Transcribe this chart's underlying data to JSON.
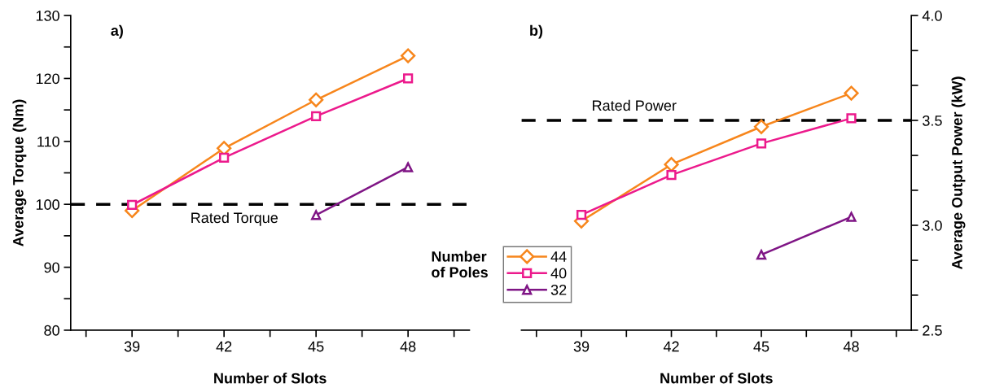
{
  "chart_data": [
    {
      "type": "line",
      "title": "a)",
      "xlabel": "Number of Slots",
      "ylabel": "Average Torque (Nm)",
      "x": [
        39,
        42,
        45,
        48
      ],
      "xlim": [
        37,
        50
      ],
      "xticks": [
        {
          "value": 37.5,
          "label": null
        },
        39,
        {
          "value": 40.5,
          "label": null
        },
        42,
        {
          "value": 43.5,
          "label": null
        },
        45,
        {
          "value": 46.5,
          "label": null
        },
        48,
        {
          "value": 49.5,
          "label": null
        }
      ],
      "ylim": [
        80,
        130
      ],
      "yticks": [
        80,
        {
          "value": 85,
          "label": null
        },
        90,
        {
          "value": 95,
          "label": null
        },
        100,
        {
          "value": 105,
          "label": null
        },
        110,
        {
          "value": 115,
          "label": null
        },
        120,
        {
          "value": 125,
          "label": null
        },
        130
      ],
      "series": [
        {
          "color": "#f7861c",
          "marker": "diamond",
          "values": [
            99.0,
            108.9,
            116.6,
            123.6
          ]
        },
        {
          "color": "#ec1a8c",
          "marker": "square",
          "values": [
            99.9,
            107.4,
            114.0,
            120.0
          ]
        },
        {
          "color": "#7f1585",
          "marker": "triangle",
          "values": [
            null,
            null,
            98.3,
            105.9
          ]
        }
      ],
      "ref_lines": [
        {
          "axis": "y",
          "value": 100,
          "label": "Rated Torque",
          "color": "#000000",
          "line_style": "dashed"
        }
      ],
      "grid": false,
      "legend": false
    },
    {
      "type": "line",
      "title": "b)",
      "xlabel": "Number of Slots",
      "ylabel": "Average Output Power (kW)",
      "legend_title": "Number\nof Poles",
      "x": [
        39,
        42,
        45,
        48
      ],
      "xlim": [
        37,
        50
      ],
      "xticks": [
        {
          "value": 37.5,
          "label": null
        },
        39,
        {
          "value": 40.5,
          "label": null
        },
        42,
        {
          "value": 43.5,
          "label": null
        },
        45,
        {
          "value": 46.5,
          "label": null
        },
        48,
        {
          "value": 49.5,
          "label": null
        }
      ],
      "ylim": [
        2.5,
        4.0
      ],
      "yticks": [
        2.5,
        {
          "value": 2.667,
          "label": null
        },
        {
          "value": 2.833,
          "label": null
        },
        {
          "value": 3.0,
          "label": "3.0"
        },
        {
          "value": 3.167,
          "label": null
        },
        {
          "value": 3.333,
          "label": null
        },
        3.5,
        {
          "value": 3.667,
          "label": null
        },
        {
          "value": 3.833,
          "label": null
        },
        {
          "value": 4.0,
          "label": "4.0"
        }
      ],
      "series": [
        {
          "name": "44",
          "color": "#f7861c",
          "marker": "diamond",
          "values": [
            3.02,
            3.29,
            3.47,
            3.63
          ]
        },
        {
          "name": "40",
          "color": "#ec1a8c",
          "marker": "square",
          "values": [
            3.05,
            3.24,
            3.39,
            3.51
          ]
        },
        {
          "name": "32",
          "color": "#7f1585",
          "marker": "triangle",
          "values": [
            null,
            null,
            2.86,
            3.04
          ]
        }
      ],
      "ref_lines": [
        {
          "axis": "y",
          "value": 3.5,
          "label": "Rated Power",
          "color": "#000000",
          "line_style": "dashed"
        }
      ],
      "grid": false,
      "legend": "bottom left"
    }
  ]
}
